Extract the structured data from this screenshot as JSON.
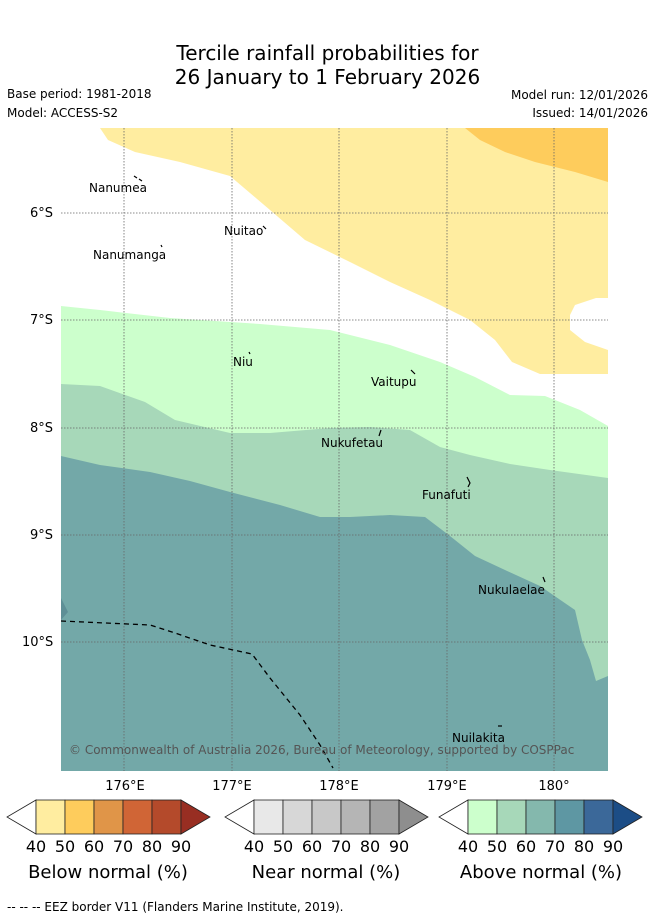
{
  "title": {
    "line1": "Tercile rainfall probabilities for",
    "line2": "26 January to 1 February 2026"
  },
  "meta": {
    "base_period": "Base period: 1981-2018",
    "model": "Model: ACCESS-S2",
    "model_run": "Model run: 12/01/2026",
    "issued": "Issued: 14/01/2026"
  },
  "map": {
    "lat_labels": [
      "6°S",
      "7°S",
      "8°S",
      "9°S",
      "10°S"
    ],
    "lon_labels": [
      "176°E",
      "177°E",
      "178°E",
      "179°E",
      "180°"
    ],
    "islands": [
      "Nanumea",
      "Nuitao",
      "Nanumanga",
      "Niu",
      "Vaitupu",
      "Nukufetau",
      "Funafuti",
      "Nukulaelae",
      "Nuilakita"
    ],
    "copyright": "© Commonwealth of Australia 2026, Bureau of Meteorology, supported by COSPPac"
  },
  "legend": {
    "ticks": [
      "40",
      "50",
      "60",
      "70",
      "80",
      "90"
    ],
    "below": {
      "title": "Below normal (%)",
      "colors": [
        "#ffffff",
        "#ffeda0",
        "#fecc5c",
        "#e09548",
        "#d06536",
        "#b44a2b",
        "#982e22"
      ]
    },
    "near": {
      "title": "Near normal (%)",
      "colors": [
        "#ffffff",
        "#e8e8e8",
        "#d7d7d7",
        "#c8c8c8",
        "#b5b5b5",
        "#a2a2a2",
        "#8e8e8e"
      ]
    },
    "above": {
      "title": "Above normal (%)",
      "colors": [
        "#ffffff",
        "#ccffcc",
        "#a7d8b9",
        "#84b8ad",
        "#5e97a3",
        "#3b6899",
        "#1c4d86"
      ]
    },
    "footer": "--  --  -- EEZ border V11 (Flanders Marine Institute, 2019)."
  }
}
